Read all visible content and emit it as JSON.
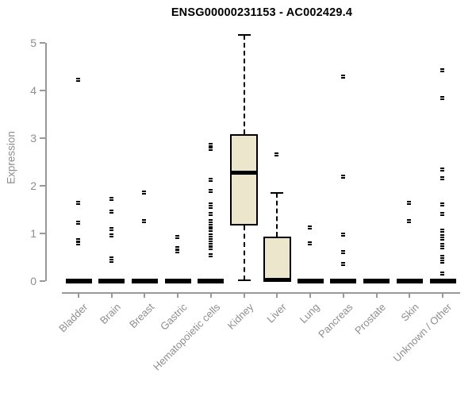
{
  "page": {
    "background": "#ffffff"
  },
  "chart_data": {
    "type": "boxplot",
    "title": "ENSG00000231153 - AC002429.4",
    "ylabel": "Expression",
    "xlabel": "",
    "ylim": [
      0,
      5.3
    ],
    "yticks": [
      0,
      1,
      2,
      3,
      4,
      5
    ],
    "grid": false,
    "legend": "none",
    "colors": {
      "box_fill": "#ECE6CD",
      "box_border": "#000000",
      "median": "#000000",
      "outlier": "#000000",
      "axis": "#999999",
      "tick_label": "#8e8e8e",
      "title": "#000000"
    },
    "categories": [
      "Bladder",
      "Brain",
      "Breast",
      "Gastric",
      "Hematopoietic cells",
      "Kidney",
      "Liver",
      "Lung",
      "Pancreas",
      "Prostate",
      "Skin",
      "Unknown / Other"
    ],
    "series": [
      {
        "category": "Bladder",
        "whisker_low": 0,
        "q1": 0,
        "median": 0,
        "q3": 0,
        "whisker_high": 0,
        "outliers": [
          4.22,
          1.63,
          1.22,
          0.85,
          0.79
        ]
      },
      {
        "category": "Brain",
        "whisker_low": 0,
        "q1": 0,
        "median": 0,
        "q3": 0,
        "whisker_high": 0,
        "outliers": [
          1.72,
          1.45,
          1.08,
          0.95,
          0.47,
          0.42
        ]
      },
      {
        "category": "Breast",
        "whisker_low": 0,
        "q1": 0,
        "median": 0,
        "q3": 0,
        "whisker_high": 0,
        "outliers": [
          1.85,
          1.25
        ]
      },
      {
        "category": "Gastric",
        "whisker_low": 0,
        "q1": 0,
        "median": 0,
        "q3": 0,
        "whisker_high": 0,
        "outliers": [
          0.92,
          0.68,
          0.62
        ]
      },
      {
        "category": "Hematopoietic cells",
        "whisker_low": 0,
        "q1": 0,
        "median": 0,
        "q3": 0,
        "whisker_high": 0,
        "outliers": [
          2.85,
          2.77,
          2.12,
          1.88,
          1.6,
          1.55,
          1.4,
          1.25,
          1.15,
          1.07,
          0.95,
          0.9,
          0.85,
          0.8,
          0.75,
          0.68,
          0.53
        ]
      },
      {
        "category": "Kidney",
        "whisker_low": 0.02,
        "q1": 1.17,
        "median": 2.28,
        "q3": 3.08,
        "whisker_high": 5.17,
        "outliers": []
      },
      {
        "category": "Liver",
        "whisker_low": 0,
        "q1": 0,
        "median": 0.02,
        "q3": 0.93,
        "whisker_high": 1.85,
        "outliers": [
          2.65
        ]
      },
      {
        "category": "Lung",
        "whisker_low": 0,
        "q1": 0,
        "median": 0,
        "q3": 0,
        "whisker_high": 0,
        "outliers": [
          1.12,
          0.78
        ]
      },
      {
        "category": "Pancreas",
        "whisker_low": 0,
        "q1": 0,
        "median": 0,
        "q3": 0,
        "whisker_high": 0,
        "outliers": [
          4.28,
          2.18,
          0.97,
          0.6,
          0.35
        ]
      },
      {
        "category": "Prostate",
        "whisker_low": 0,
        "q1": 0,
        "median": 0,
        "q3": 0,
        "whisker_high": 0,
        "outliers": []
      },
      {
        "category": "Skin",
        "whisker_low": 0,
        "q1": 0,
        "median": 0,
        "q3": 0,
        "whisker_high": 0,
        "outliers": [
          1.63,
          1.25
        ]
      },
      {
        "category": "Unknown / Other",
        "whisker_low": 0,
        "q1": 0,
        "median": 0,
        "q3": 0,
        "whisker_high": 0,
        "outliers": [
          4.42,
          3.83,
          2.33,
          2.15,
          1.6,
          1.4,
          1.05,
          0.93,
          0.88,
          0.75,
          0.7,
          0.5,
          0.45,
          0.4,
          0.15
        ]
      }
    ]
  }
}
